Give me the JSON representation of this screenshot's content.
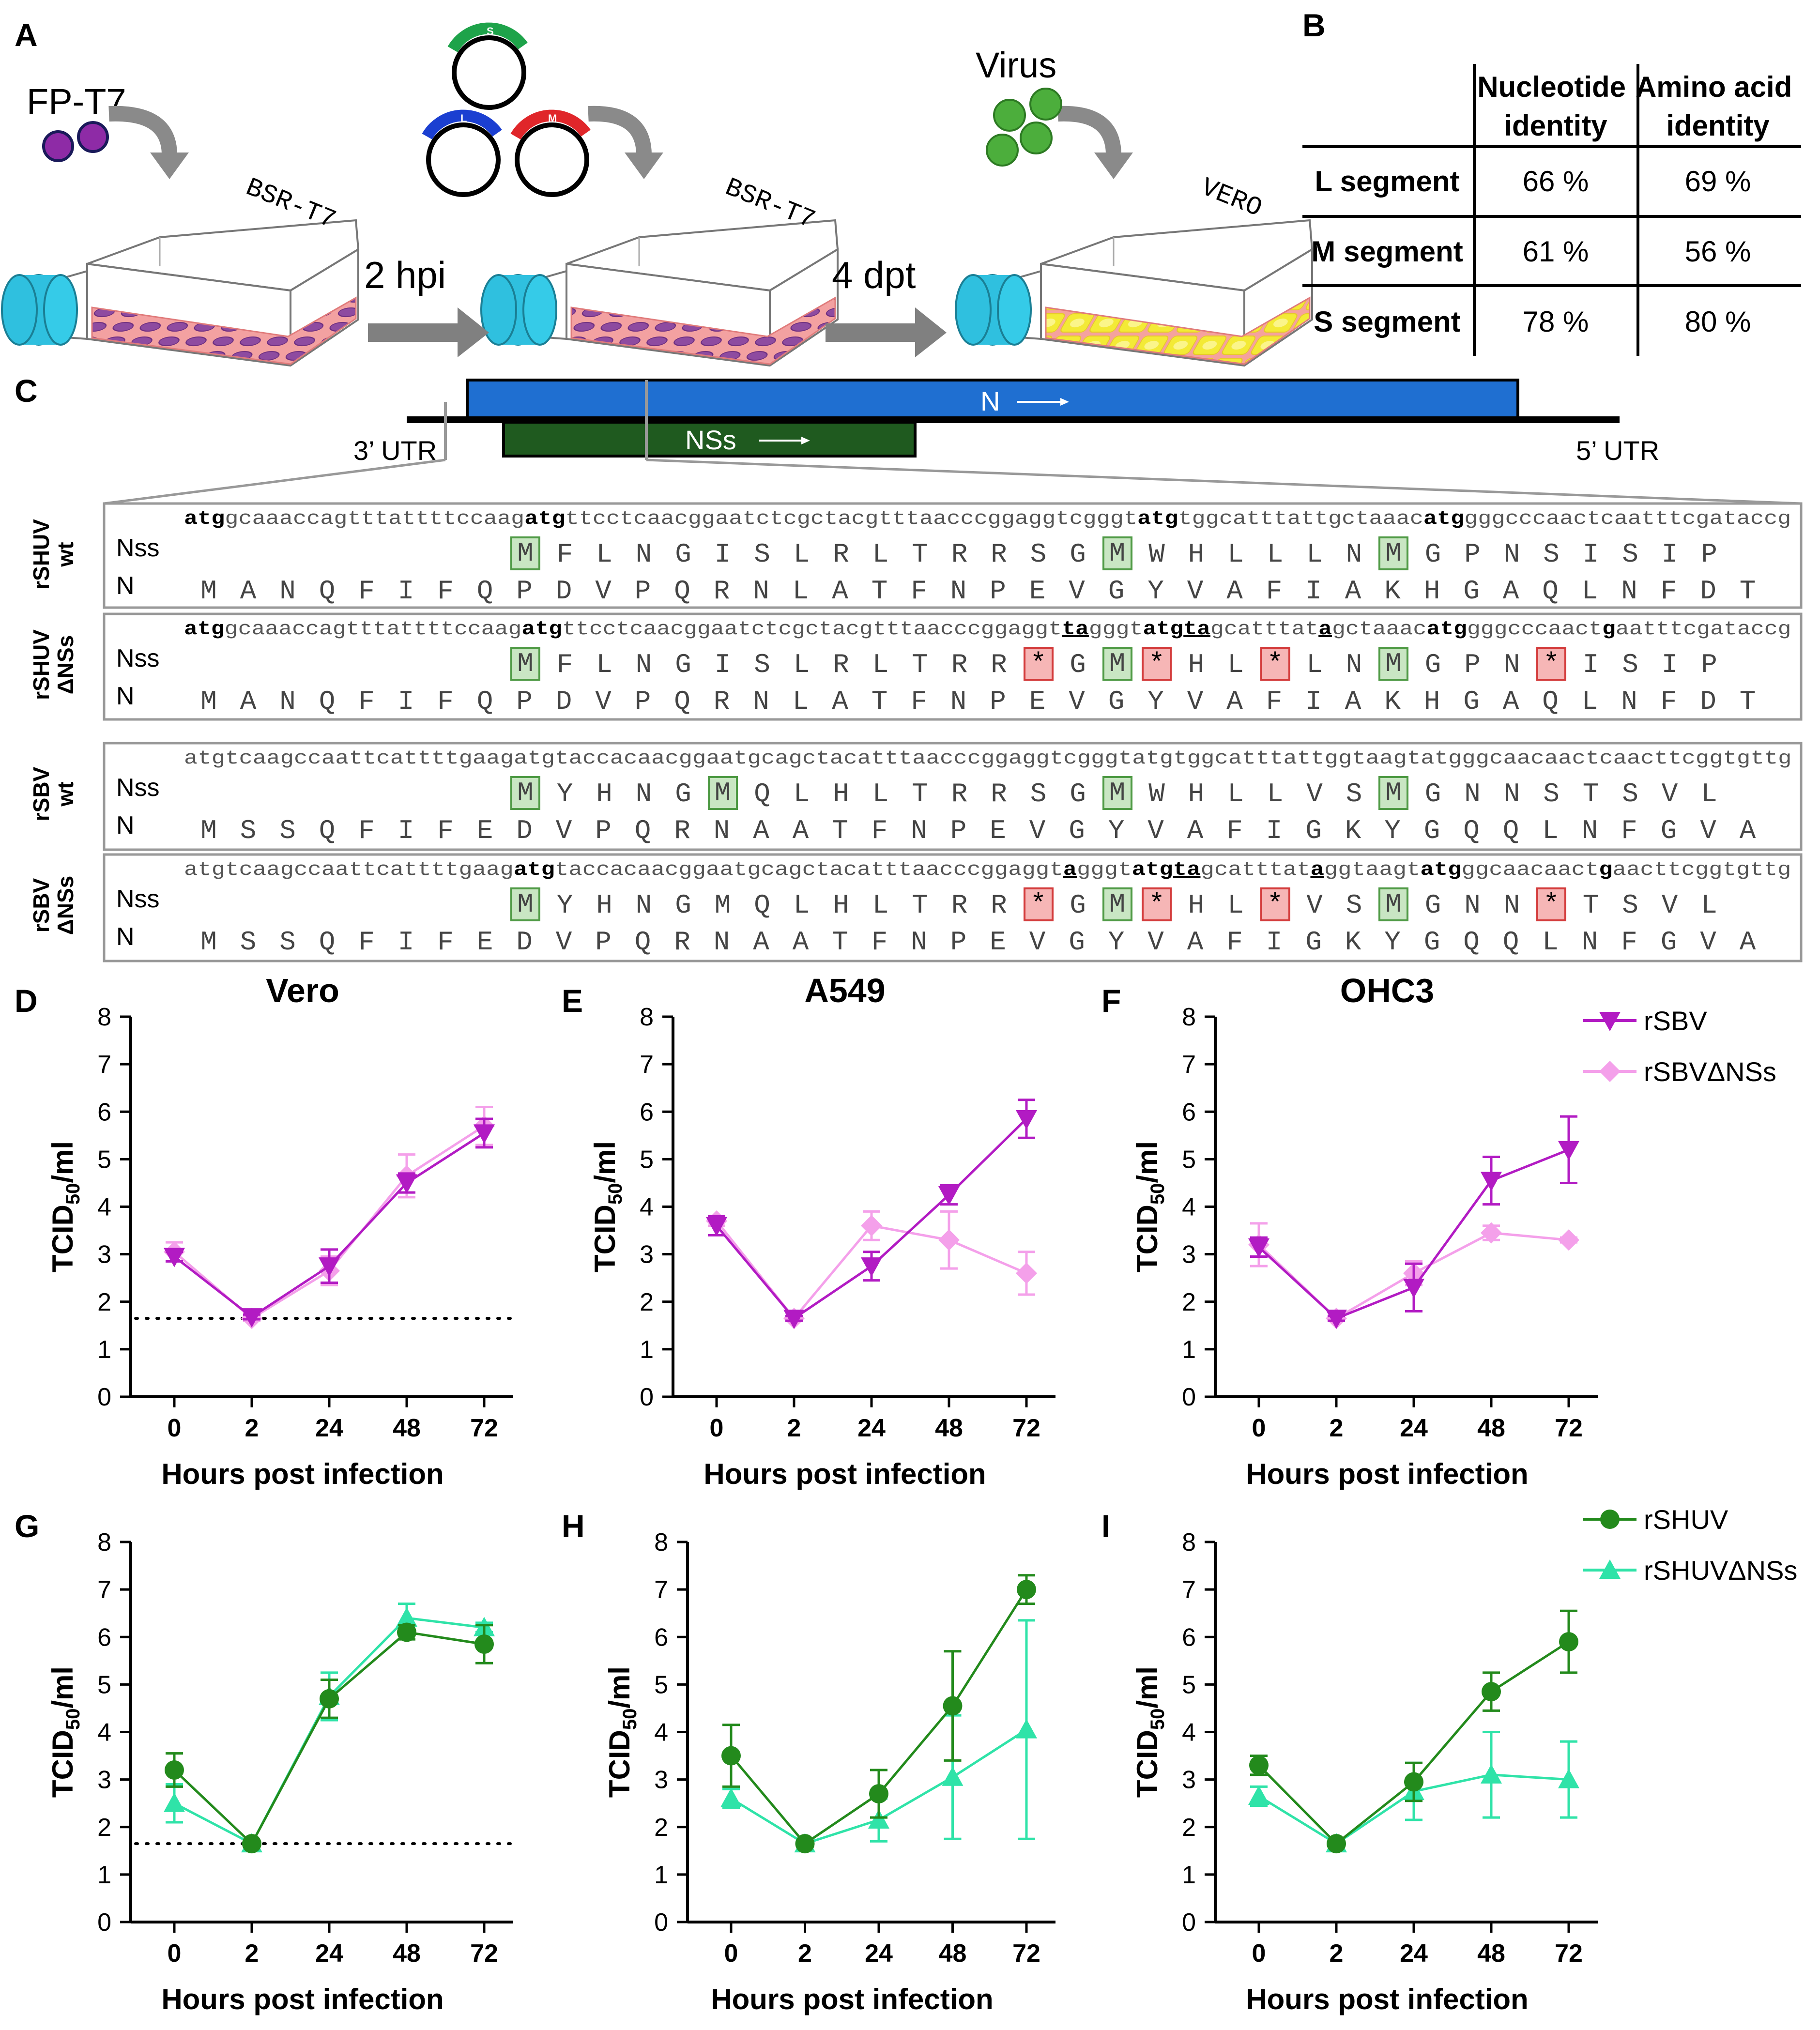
{
  "panel_letters": {
    "a": "A",
    "b": "B",
    "c": "C",
    "d": "D",
    "e": "E",
    "f": "F",
    "g": "G",
    "h": "H",
    "i": "I"
  },
  "panel_a": {
    "fp_t7_label": "FP-T7",
    "bsr_label_1": "BSR-T7",
    "bsr_label_2": "BSR-T7",
    "vero_label": "VERO",
    "virus_label": "Virus",
    "plasmid_s": "S",
    "plasmid_l": "L",
    "plasmid_m": "M",
    "step1": "2 hpi",
    "step2": "4 dpt",
    "colors": {
      "cap": "#2fc0df",
      "medium": "#f3a1a1",
      "cells": "#8e4ba0",
      "yellow_cells": "#f3ea36",
      "virus": "#4cae3c",
      "s": "#1ea34a",
      "l": "#1b3fd1",
      "m": "#e0262a",
      "arrow": "#808080"
    }
  },
  "panel_b": {
    "header_col1": "Nucleotide identity",
    "header_col1_l1": "Nucleotide",
    "header_col1_l2": "identity",
    "header_col2_l1": "Amino acid",
    "header_col2_l2": "identity",
    "rows": [
      {
        "label": "L segment",
        "nt": "66 %",
        "aa": "69 %"
      },
      {
        "label": "M segment",
        "nt": "61 %",
        "aa": "56 %"
      },
      {
        "label": "S segment",
        "nt": "78 %",
        "aa": "80 %"
      }
    ]
  },
  "panel_c": {
    "n_label": "N",
    "nss_label": "NSs",
    "utr3": "3’ UTR",
    "utr5": "5’ UTR",
    "colors": {
      "n_bar": "#1f6fd1",
      "nss_bar": "#1f5a1f"
    },
    "blocks": [
      {
        "side1": "rSHUV",
        "side2": "wt",
        "nt_segments": [
          [
            "b",
            "atg"
          ],
          [
            "n",
            "gcaaaccagtttattttccaag"
          ],
          [
            "b",
            "atg"
          ],
          [
            "n",
            "ttcctcaacggaatctcgctacgtttaacccggaggtcgggt"
          ],
          [
            "b",
            "atg"
          ],
          [
            "n",
            "tggcatttattgctaaac"
          ],
          [
            "b",
            "atg"
          ],
          [
            "n",
            "gggcccaactcaatttcgataccg"
          ]
        ],
        "nss_row_label": "Nss",
        "n_row_label": "N",
        "nss": [
          "M",
          "F",
          "L",
          "N",
          "G",
          "I",
          "S",
          "L",
          "R",
          "L",
          "T",
          "R",
          "R",
          "S",
          "G",
          "M",
          "W",
          "H",
          "L",
          "L",
          "L",
          "N",
          "M",
          "G",
          "P",
          "N",
          "S",
          "I",
          "S",
          "I",
          "P"
        ],
        "nss_marks": [
          "m",
          "",
          "",
          "",
          "",
          "",
          "",
          "",
          "",
          "",
          "",
          "",
          "",
          "",
          "",
          "m",
          "",
          "",
          "",
          "",
          "",
          "",
          "m",
          "",
          "",
          "",
          "",
          "",
          "",
          "",
          ""
        ],
        "n": [
          "M",
          "A",
          "N",
          "Q",
          "F",
          "I",
          "F",
          "Q",
          "P",
          "D",
          "V",
          "P",
          "Q",
          "R",
          "N",
          "L",
          "A",
          "T",
          "F",
          "N",
          "P",
          "E",
          "V",
          "G",
          "Y",
          "V",
          "A",
          "F",
          "I",
          "A",
          "K",
          "H",
          "G",
          "A",
          "Q",
          "L",
          "N",
          "F",
          "D",
          "T"
        ]
      },
      {
        "side1": "rSHUV",
        "side2": "ΔNSs",
        "nt_segments": [
          [
            "b",
            "atg"
          ],
          [
            "n",
            "gcaaaccagtttattttccaag"
          ],
          [
            "b",
            "atg"
          ],
          [
            "n",
            "ttcctcaacggaatctcgctacgtttaacccggaggt"
          ],
          [
            "u",
            "ta"
          ],
          [
            "n",
            "gggt"
          ],
          [
            "b",
            "atg"
          ],
          [
            "u",
            "ta"
          ],
          [
            "n",
            "gcattta"
          ],
          [
            "n",
            "t"
          ],
          [
            "u",
            "a"
          ],
          [
            "n",
            "gctaaac"
          ],
          [
            "b",
            "atg"
          ],
          [
            "n",
            "gggcccaact"
          ],
          [
            "u",
            "g"
          ],
          [
            "n",
            "aatttcgataccg"
          ]
        ],
        "nss_row_label": "Nss",
        "n_row_label": "N",
        "nss": [
          "M",
          "F",
          "L",
          "N",
          "G",
          "I",
          "S",
          "L",
          "R",
          "L",
          "T",
          "R",
          "R",
          "*",
          "G",
          "M",
          "*",
          "H",
          "L",
          "*",
          "L",
          "N",
          "M",
          "G",
          "P",
          "N",
          "*",
          "I",
          "S",
          "I",
          "P"
        ],
        "nss_marks": [
          "m",
          "",
          "",
          "",
          "",
          "",
          "",
          "",
          "",
          "",
          "",
          "",
          "",
          "s",
          "",
          "m",
          "s",
          "",
          "",
          "s",
          "",
          "",
          "m",
          "",
          "",
          "",
          "s",
          "",
          "",
          "",
          ""
        ],
        "n": [
          "M",
          "A",
          "N",
          "Q",
          "F",
          "I",
          "F",
          "Q",
          "P",
          "D",
          "V",
          "P",
          "Q",
          "R",
          "N",
          "L",
          "A",
          "T",
          "F",
          "N",
          "P",
          "E",
          "V",
          "G",
          "Y",
          "V",
          "A",
          "F",
          "I",
          "A",
          "K",
          "H",
          "G",
          "A",
          "Q",
          "L",
          "N",
          "F",
          "D",
          "T"
        ]
      },
      {
        "side1": "rSBV",
        "side2": "wt",
        "nt_segments": [
          [
            "n",
            "atgtcaagccaattcattttgaagatgtaccacaacggaatgcagctacatttaacccggaggtcgggtatgtggcatttattggtaagtatgggcaacaactcaacttcggtgttg"
          ]
        ],
        "nss_row_label": "Nss",
        "n_row_label": "N",
        "nss": [
          "M",
          "Y",
          "H",
          "N",
          "G",
          "M",
          "Q",
          "L",
          "H",
          "L",
          "T",
          "R",
          "R",
          "S",
          "G",
          "M",
          "W",
          "H",
          "L",
          "L",
          "V",
          "S",
          "M",
          "G",
          "N",
          "N",
          "S",
          "T",
          "S",
          "V",
          "L"
        ],
        "nss_marks": [
          "m",
          "",
          "",
          "",
          "",
          "m",
          "",
          "",
          "",
          "",
          "",
          "",
          "",
          "",
          "",
          "m",
          "",
          "",
          "",
          "",
          "",
          "",
          "m",
          "",
          "",
          "",
          "",
          "",
          "",
          "",
          ""
        ],
        "n": [
          "M",
          "S",
          "S",
          "Q",
          "F",
          "I",
          "F",
          "E",
          "D",
          "V",
          "P",
          "Q",
          "R",
          "N",
          "A",
          "A",
          "T",
          "F",
          "N",
          "P",
          "E",
          "V",
          "G",
          "Y",
          "V",
          "A",
          "F",
          "I",
          "G",
          "K",
          "Y",
          "G",
          "Q",
          "Q",
          "L",
          "N",
          "F",
          "G",
          "V",
          "A"
        ]
      },
      {
        "side1": "rSBV",
        "side2": "ΔNSs",
        "nt_segments": [
          [
            "n",
            "atgtcaagccaattcattttgaag"
          ],
          [
            "b",
            "atg"
          ],
          [
            "n",
            "taccacaacggaatgcagctacatttaacccggaggt"
          ],
          [
            "u",
            "a"
          ],
          [
            "n",
            "gggt"
          ],
          [
            "b",
            "atg"
          ],
          [
            "u",
            "ta"
          ],
          [
            "n",
            "gcattta"
          ],
          [
            "n",
            "t"
          ],
          [
            "u",
            "a"
          ],
          [
            "n",
            "ggtaagt"
          ],
          [
            "b",
            "atg"
          ],
          [
            "n",
            "ggcaacaact"
          ],
          [
            "u",
            "g"
          ],
          [
            "n",
            "aacttcggtgttg"
          ]
        ],
        "nss_row_label": "Nss",
        "n_row_label": "N",
        "nss": [
          "M",
          "Y",
          "H",
          "N",
          "G",
          "M",
          "Q",
          "L",
          "H",
          "L",
          "T",
          "R",
          "R",
          "*",
          "G",
          "M",
          "*",
          "H",
          "L",
          "*",
          "V",
          "S",
          "M",
          "G",
          "N",
          "N",
          "*",
          "T",
          "S",
          "V",
          "L"
        ],
        "nss_marks": [
          "m",
          "",
          "",
          "",
          "",
          "",
          "",
          "",
          "",
          "",
          "",
          "",
          "",
          "s",
          "",
          "m",
          "s",
          "",
          "",
          "s",
          "",
          "",
          "m",
          "",
          "",
          "",
          "s",
          "",
          "",
          "",
          ""
        ],
        "n": [
          "M",
          "S",
          "S",
          "Q",
          "F",
          "I",
          "F",
          "E",
          "D",
          "V",
          "P",
          "Q",
          "R",
          "N",
          "A",
          "A",
          "T",
          "F",
          "N",
          "P",
          "E",
          "V",
          "G",
          "Y",
          "V",
          "A",
          "F",
          "I",
          "G",
          "K",
          "Y",
          "G",
          "Q",
          "Q",
          "L",
          "N",
          "F",
          "G",
          "V",
          "A"
        ]
      }
    ]
  },
  "legend_top": {
    "s1": "rSBV",
    "s2": "rSBVΔNSs"
  },
  "legend_bottom": {
    "s1": "rSHUV",
    "s2": "rSHUVΔNSs"
  },
  "chart_data": [
    {
      "id": "D",
      "type": "line",
      "title": "Vero",
      "xlabel": "Hours post infection",
      "ylabel": "TCID50/ml",
      "categories": [
        "0",
        "2",
        "24",
        "48",
        "72"
      ],
      "ylim": [
        0,
        8
      ],
      "detection_limit": 1.65,
      "series": [
        {
          "name": "rSBV",
          "values": [
            2.95,
            1.68,
            2.75,
            4.5,
            5.55
          ],
          "errors": [
            0.1,
            0.05,
            0.35,
            0.2,
            0.3
          ],
          "color": "#b21bc3",
          "marker": "tri-down"
        },
        {
          "name": "rSBVΔNSs",
          "values": [
            3.05,
            1.65,
            2.65,
            4.65,
            5.7
          ],
          "errors": [
            0.2,
            0.05,
            0.3,
            0.45,
            0.4
          ],
          "color": "#f4a0ea",
          "marker": "diamond"
        }
      ]
    },
    {
      "id": "E",
      "type": "line",
      "title": "A549",
      "xlabel": "Hours post infection",
      "ylabel": "TCID50/ml",
      "categories": [
        "0",
        "2",
        "24",
        "48",
        "72"
      ],
      "ylim": [
        0,
        8
      ],
      "series": [
        {
          "name": "rSBV",
          "values": [
            3.6,
            1.65,
            2.75,
            4.25,
            5.85
          ],
          "errors": [
            0.2,
            0.05,
            0.3,
            0.2,
            0.4
          ],
          "color": "#b21bc3",
          "marker": "tri-down"
        },
        {
          "name": "rSBVΔNSs",
          "values": [
            3.7,
            1.65,
            3.6,
            3.3,
            2.6
          ],
          "errors": [
            0.1,
            0.05,
            0.3,
            0.6,
            0.45
          ],
          "color": "#f4a0ea",
          "marker": "diamond"
        }
      ]
    },
    {
      "id": "F",
      "type": "line",
      "title": "OHC3",
      "xlabel": "Hours post infection",
      "ylabel": "TCID50/ml",
      "categories": [
        "0",
        "2",
        "24",
        "48",
        "72"
      ],
      "ylim": [
        0,
        8
      ],
      "series": [
        {
          "name": "rSBV",
          "values": [
            3.15,
            1.65,
            2.3,
            4.55,
            5.2
          ],
          "errors": [
            0.2,
            0.05,
            0.5,
            0.5,
            0.7
          ],
          "color": "#b21bc3",
          "marker": "tri-down"
        },
        {
          "name": "rSBVΔNSs",
          "values": [
            3.2,
            1.65,
            2.6,
            3.45,
            3.3
          ],
          "errors": [
            0.45,
            0.05,
            0.25,
            0.15,
            0.05
          ],
          "color": "#f4a0ea",
          "marker": "diamond"
        }
      ]
    },
    {
      "id": "G",
      "type": "line",
      "title": "",
      "xlabel": "Hours post infection",
      "ylabel": "TCID50/ml",
      "categories": [
        "0",
        "2",
        "24",
        "48",
        "72"
      ],
      "ylim": [
        0,
        8
      ],
      "detection_limit": 1.65,
      "series": [
        {
          "name": "rSHUV",
          "values": [
            3.2,
            1.65,
            4.7,
            6.1,
            5.85
          ],
          "errors": [
            0.35,
            0.05,
            0.4,
            0.15,
            0.4
          ],
          "color": "#238a1c",
          "marker": "circle"
        },
        {
          "name": "rSHUVΔNSs",
          "values": [
            2.5,
            1.65,
            4.75,
            6.4,
            6.2
          ],
          "errors": [
            0.4,
            0.05,
            0.5,
            0.3,
            0.1
          ],
          "color": "#2fe3a8",
          "marker": "tri-up"
        }
      ]
    },
    {
      "id": "H",
      "type": "line",
      "title": "",
      "xlabel": "Hours post infection",
      "ylabel": "TCID50/ml",
      "categories": [
        "0",
        "2",
        "24",
        "48",
        "72"
      ],
      "ylim": [
        0,
        8
      ],
      "series": [
        {
          "name": "rSHUV",
          "values": [
            3.5,
            1.65,
            2.7,
            4.55,
            7.0
          ],
          "errors": [
            0.65,
            0.05,
            0.5,
            1.15,
            0.3
          ],
          "color": "#238a1c",
          "marker": "circle"
        },
        {
          "name": "rSHUVΔNSs",
          "values": [
            2.6,
            1.65,
            2.15,
            3.05,
            4.05
          ],
          "errors": [
            0.2,
            0.05,
            0.45,
            1.3,
            2.3
          ],
          "color": "#2fe3a8",
          "marker": "tri-up"
        }
      ]
    },
    {
      "id": "I",
      "type": "line",
      "title": "",
      "xlabel": "Hours post infection",
      "ylabel": "TCID50/ml",
      "categories": [
        "0",
        "2",
        "24",
        "48",
        "72"
      ],
      "ylim": [
        0,
        8
      ],
      "series": [
        {
          "name": "rSHUV",
          "values": [
            3.3,
            1.65,
            2.95,
            4.85,
            5.9
          ],
          "errors": [
            0.2,
            0.05,
            0.4,
            0.4,
            0.65
          ],
          "color": "#238a1c",
          "marker": "circle"
        },
        {
          "name": "rSHUVΔNSs",
          "values": [
            2.65,
            1.65,
            2.75,
            3.1,
            3.0
          ],
          "errors": [
            0.2,
            0.05,
            0.6,
            0.9,
            0.8
          ],
          "color": "#2fe3a8",
          "marker": "tri-up"
        }
      ]
    }
  ]
}
